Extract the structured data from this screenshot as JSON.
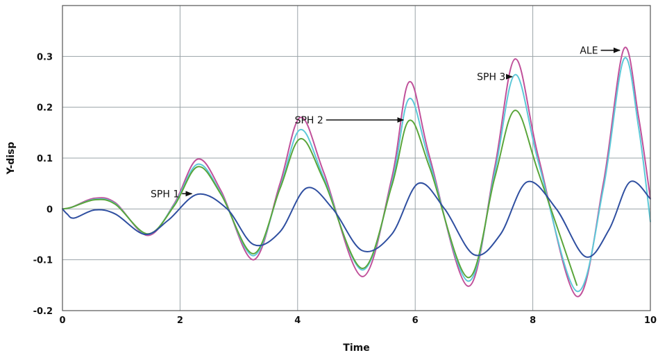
{
  "chart_data": {
    "type": "line",
    "xlabel": "Time",
    "ylabel": "Y-disp",
    "xlim": [
      0,
      10
    ],
    "ylim": [
      -0.2,
      0.4
    ],
    "x_ticks": [
      "0",
      "2",
      "4",
      "6",
      "8",
      "10"
    ],
    "y_ticks": [
      "-0.2",
      "-0.1",
      "0",
      "0.1",
      "0.2",
      "0.3"
    ],
    "grid": true,
    "series": [
      {
        "color": "#c0509a",
        "x": [
          0,
          0.15,
          0.55,
          0.9,
          1.45,
          1.9,
          2.3,
          2.7,
          3.25,
          3.7,
          4.05,
          4.45,
          5.1,
          5.6,
          5.9,
          6.25,
          6.9,
          7.35,
          7.7,
          8.1,
          8.75,
          9.2,
          9.55,
          9.8,
          10.0
        ],
        "values": [
          0,
          0.003,
          0.021,
          0.012,
          -0.052,
          0.01,
          0.098,
          0.035,
          -0.1,
          0.05,
          0.18,
          0.07,
          -0.133,
          0.06,
          0.25,
          0.1,
          -0.152,
          0.08,
          0.295,
          0.1,
          -0.172,
          0.05,
          0.315,
          0.18,
          0.02
        ]
      },
      {
        "color": "#5cc8d8",
        "x": [
          0,
          0.15,
          0.55,
          0.9,
          1.45,
          1.9,
          2.3,
          2.7,
          3.25,
          3.7,
          4.05,
          4.45,
          5.1,
          5.6,
          5.9,
          6.25,
          6.9,
          7.35,
          7.7,
          8.1,
          8.75,
          9.2,
          9.55,
          9.8,
          10.0
        ],
        "values": [
          0,
          0.003,
          0.019,
          0.01,
          -0.05,
          0.008,
          0.088,
          0.03,
          -0.092,
          0.042,
          0.156,
          0.06,
          -0.12,
          0.05,
          0.217,
          0.09,
          -0.142,
          0.07,
          0.264,
          0.09,
          -0.162,
          0.04,
          0.295,
          0.16,
          -0.025
        ]
      },
      {
        "color": "#5aa53a",
        "x": [
          0,
          0.15,
          0.55,
          0.9,
          1.45,
          1.9,
          2.3,
          2.7,
          3.25,
          3.7,
          4.05,
          4.45,
          5.1,
          5.6,
          5.9,
          6.25,
          6.9,
          7.35,
          7.7,
          8.1,
          8.75
        ],
        "values": [
          0,
          0.003,
          0.018,
          0.009,
          -0.049,
          0.006,
          0.083,
          0.028,
          -0.088,
          0.04,
          0.138,
          0.055,
          -0.117,
          0.045,
          0.174,
          0.08,
          -0.135,
          0.06,
          0.194,
          0.07,
          -0.15
        ]
      },
      {
        "color": "#2f4fa0",
        "x": [
          0,
          0.08,
          0.2,
          0.55,
          0.9,
          1.4,
          1.8,
          2.3,
          2.8,
          3.25,
          3.7,
          4.15,
          4.6,
          5.1,
          5.6,
          6.05,
          6.5,
          7.0,
          7.45,
          7.9,
          8.4,
          8.9,
          9.3,
          9.65,
          10.0
        ],
        "values": [
          0,
          -0.01,
          -0.018,
          -0.002,
          -0.01,
          -0.05,
          -0.022,
          0.029,
          0.0,
          -0.07,
          -0.045,
          0.041,
          0.0,
          -0.082,
          -0.05,
          0.05,
          0.0,
          -0.09,
          -0.05,
          0.053,
          0.0,
          -0.094,
          -0.04,
          0.053,
          0.02
        ]
      }
    ],
    "annotations": [
      {
        "text": "SPH 1",
        "x": 1.5,
        "y": 0.03,
        "arrow_to": [
          2.2,
          0.03
        ]
      },
      {
        "text": "SPH 2",
        "x": 3.95,
        "y": 0.175,
        "arrow_to": [
          5.8,
          0.175
        ]
      },
      {
        "text": "SPH 3",
        "x": 7.05,
        "y": 0.26,
        "arrow_to": [
          7.65,
          0.26
        ]
      },
      {
        "text": "ALE",
        "x": 8.8,
        "y": 0.312,
        "arrow_to": [
          9.48,
          0.312
        ]
      }
    ]
  }
}
